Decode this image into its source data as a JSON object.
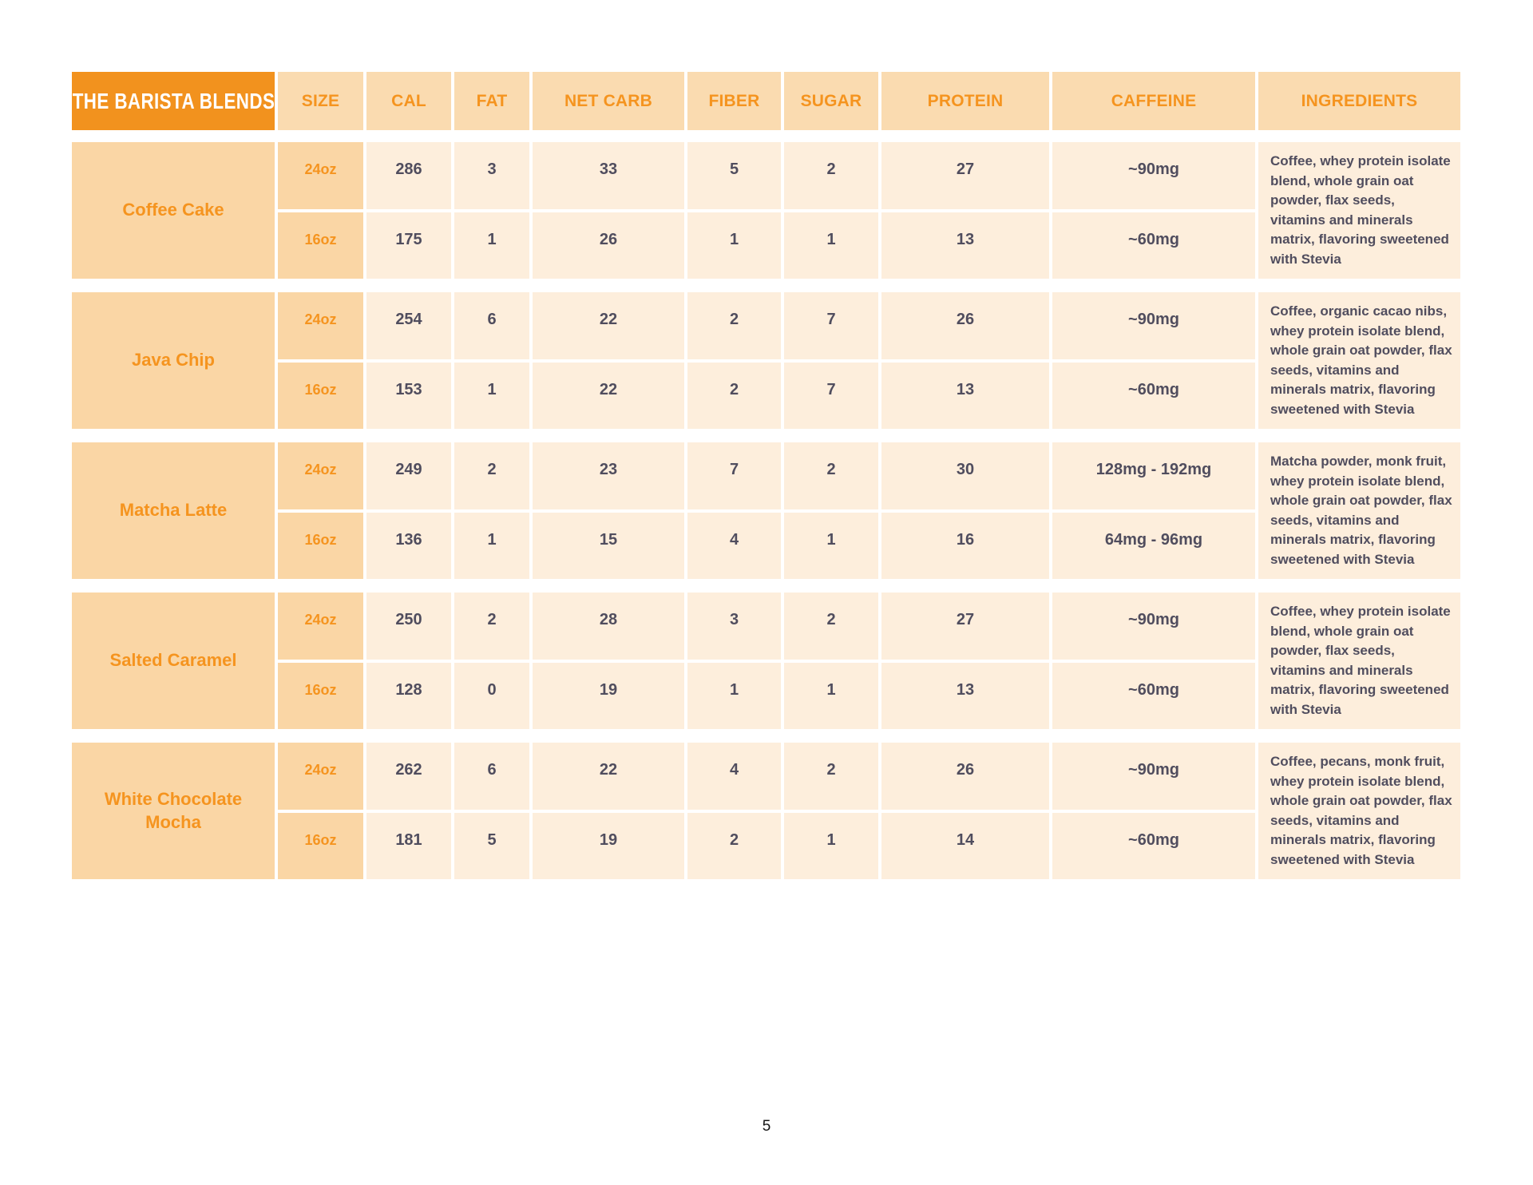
{
  "page": {
    "number": "5"
  },
  "colors": {
    "orange": "#F2921E",
    "orange_text": "#F5941F",
    "peach": "#FAD6A5",
    "peach_head": "#FADBB0",
    "cream": "#FDEEDC",
    "slate": "#504D5E"
  },
  "table": {
    "title": "THE BARISTA BLENDS",
    "columns": [
      "SIZE",
      "CAL",
      "FAT",
      "NET CARB",
      "FIBER",
      "SUGAR",
      "PROTEIN",
      "CAFFEINE",
      "INGREDIENTS"
    ],
    "products": [
      {
        "name": "Coffee Cake",
        "rows": [
          {
            "size": "24oz",
            "cal": "286",
            "fat": "3",
            "net_carb": "33",
            "fiber": "5",
            "sugar": "2",
            "protein": "27",
            "caffeine": "~90mg"
          },
          {
            "size": "16oz",
            "cal": "175",
            "fat": "1",
            "net_carb": "26",
            "fiber": "1",
            "sugar": "1",
            "protein": "13",
            "caffeine": "~60mg"
          }
        ],
        "ingredients": "Coffee, whey protein isolate blend, whole grain oat powder, flax seeds, vitamins and minerals matrix, flavoring sweetened with Stevia"
      },
      {
        "name": "Java Chip",
        "rows": [
          {
            "size": "24oz",
            "cal": "254",
            "fat": "6",
            "net_carb": "22",
            "fiber": "2",
            "sugar": "7",
            "protein": "26",
            "caffeine": "~90mg"
          },
          {
            "size": "16oz",
            "cal": "153",
            "fat": "1",
            "net_carb": "22",
            "fiber": "2",
            "sugar": "7",
            "protein": "13",
            "caffeine": "~60mg"
          }
        ],
        "ingredients": "Coffee, organic cacao nibs, whey protein isolate blend, whole grain oat powder, flax seeds, vitamins and minerals matrix, flavoring sweetened with Stevia"
      },
      {
        "name": "Matcha Latte",
        "rows": [
          {
            "size": "24oz",
            "cal": "249",
            "fat": "2",
            "net_carb": "23",
            "fiber": "7",
            "sugar": "2",
            "protein": "30",
            "caffeine": "128mg - 192mg"
          },
          {
            "size": "16oz",
            "cal": "136",
            "fat": "1",
            "net_carb": "15",
            "fiber": "4",
            "sugar": "1",
            "protein": "16",
            "caffeine": "64mg - 96mg"
          }
        ],
        "ingredients": "Matcha powder, monk fruit, whey protein isolate blend, whole grain oat powder, flax seeds, vitamins and minerals matrix, flavoring sweetened with Stevia"
      },
      {
        "name": "Salted Caramel",
        "rows": [
          {
            "size": "24oz",
            "cal": "250",
            "fat": "2",
            "net_carb": "28",
            "fiber": "3",
            "sugar": "2",
            "protein": "27",
            "caffeine": "~90mg"
          },
          {
            "size": "16oz",
            "cal": "128",
            "fat": "0",
            "net_carb": "19",
            "fiber": "1",
            "sugar": "1",
            "protein": "13",
            "caffeine": "~60mg"
          }
        ],
        "ingredients": "Coffee, whey protein isolate blend, whole grain oat powder, flax seeds, vitamins and minerals matrix, flavoring sweetened with Stevia"
      },
      {
        "name": "White Chocolate Mocha",
        "rows": [
          {
            "size": "24oz",
            "cal": "262",
            "fat": "6",
            "net_carb": "22",
            "fiber": "4",
            "sugar": "2",
            "protein": "26",
            "caffeine": "~90mg"
          },
          {
            "size": "16oz",
            "cal": "181",
            "fat": "5",
            "net_carb": "19",
            "fiber": "2",
            "sugar": "1",
            "protein": "14",
            "caffeine": "~60mg"
          }
        ],
        "ingredients": "Coffee, pecans, monk fruit, whey protein isolate blend, whole grain oat powder, flax seeds, vitamins and minerals matrix, flavoring sweetened with Stevia"
      }
    ]
  }
}
